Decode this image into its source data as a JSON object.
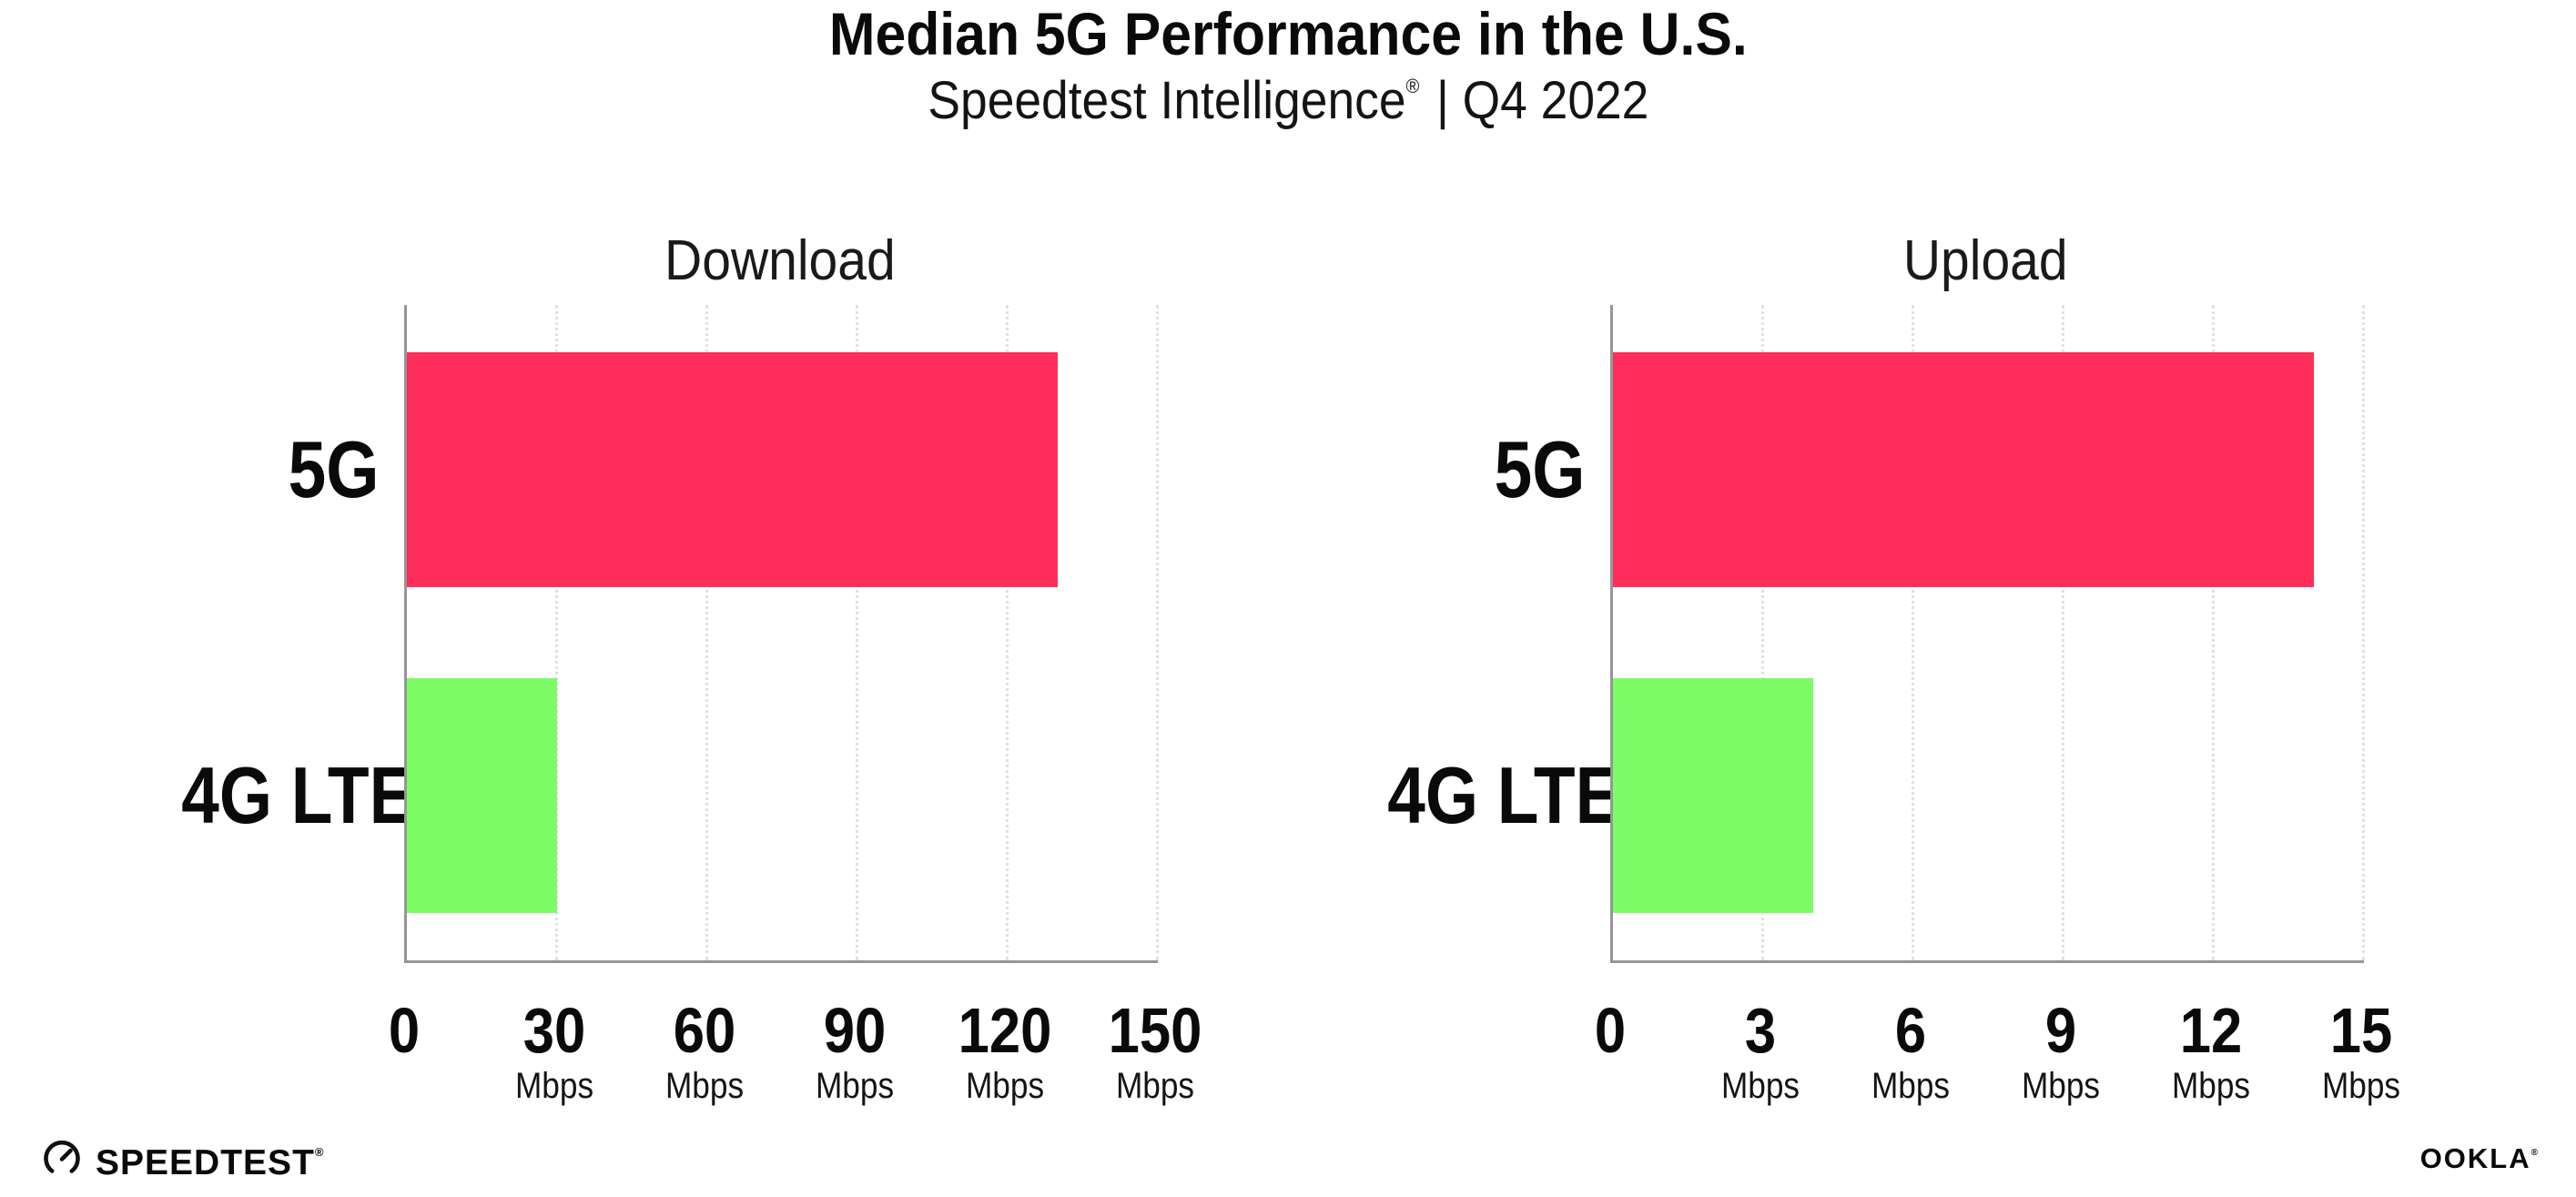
{
  "header": {
    "title": "Median 5G Performance in the U.S.",
    "subtitle_brand": "Speedtest Intelligence",
    "subtitle_mark": "®",
    "subtitle_rest": "| Q4 2022"
  },
  "colors": {
    "bar_5g": "#FF2D5A",
    "bar_4g": "#7DFC66",
    "axis": "#969696",
    "gridline": "#E0E0EA",
    "text": "#0A0A0A"
  },
  "chart_data": [
    {
      "type": "bar",
      "orientation": "horizontal",
      "title": "Download",
      "categories": [
        "5G",
        "4G LTE"
      ],
      "values": [
        130,
        30
      ],
      "unit": "Mbps",
      "xlim": [
        0,
        150
      ],
      "xticks": [
        0,
        30,
        60,
        90,
        120,
        150
      ],
      "grid": "dotted-vertical",
      "legend": "none"
    },
    {
      "type": "bar",
      "orientation": "horizontal",
      "title": "Upload",
      "categories": [
        "5G",
        "4G LTE"
      ],
      "values": [
        14,
        4
      ],
      "unit": "Mbps",
      "xlim": [
        0,
        15
      ],
      "xticks": [
        0,
        3,
        6,
        9,
        12,
        15
      ],
      "grid": "dotted-vertical",
      "legend": "none"
    }
  ],
  "footer": {
    "speedtest_logo": "SPEEDTEST",
    "speedtest_mark": "®",
    "ookla_logo": "OOKLA",
    "ookla_mark": "®"
  }
}
